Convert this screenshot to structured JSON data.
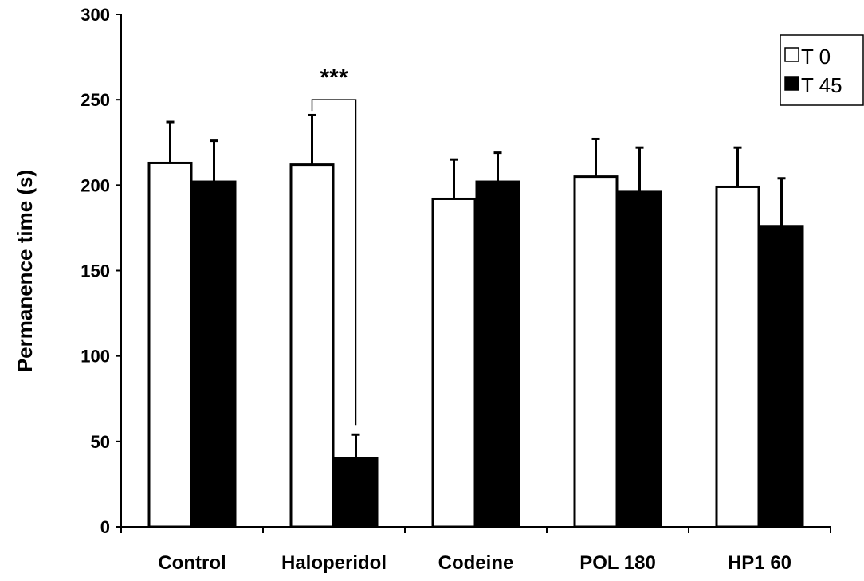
{
  "chart_data": {
    "type": "bar",
    "title": "",
    "xlabel": "",
    "ylabel": "Permanence time (s)",
    "ylim": [
      0,
      300
    ],
    "yticks": [
      0,
      50,
      100,
      150,
      200,
      250,
      300
    ],
    "categories": [
      "Control",
      "Haloperidol",
      "Codeine",
      "POL 180",
      "HP1 60"
    ],
    "series": [
      {
        "name": "T 0",
        "color": "#ffffff",
        "values": [
          213,
          212,
          192,
          205,
          199
        ],
        "errors": [
          24,
          29,
          23,
          22,
          23
        ]
      },
      {
        "name": "T 45",
        "color": "#000000",
        "values": [
          202,
          40,
          202,
          196,
          176
        ],
        "errors": [
          24,
          14,
          17,
          26,
          28
        ]
      }
    ],
    "legend_position": "top-right",
    "grid": false,
    "annotations": [
      {
        "text": "***",
        "category": "Haloperidol",
        "type": "significance-bracket"
      }
    ]
  }
}
